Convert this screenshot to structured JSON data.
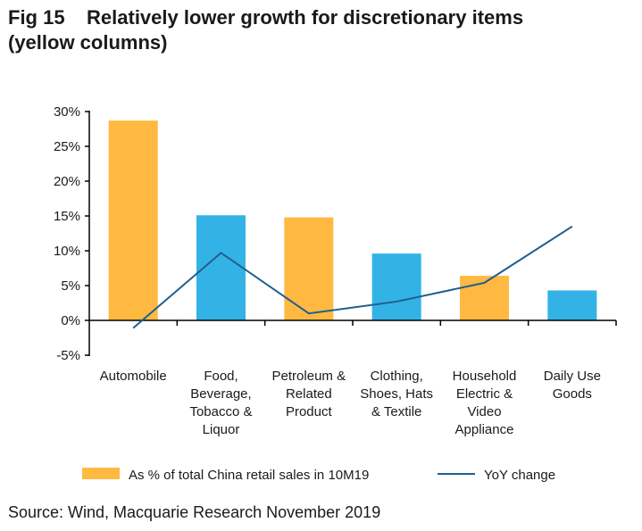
{
  "title_line1": "Fig 15    Relatively lower growth for discretionary items",
  "title_line2": "(yellow columns)",
  "source": "Source: Wind, Macquarie Research November 2019",
  "colors": {
    "yellow": "#FFB941",
    "blue": "#33B2E6",
    "line": "#1F5F8F",
    "axis": "#000000"
  },
  "chart_data": {
    "type": "bar",
    "title": "Relatively lower growth for discretionary items (yellow columns)",
    "categories": [
      [
        "Automobile"
      ],
      [
        "Food,",
        "Beverage,",
        "Tobacco &",
        "Liquor"
      ],
      [
        "Petroleum &",
        "Related",
        "Product"
      ],
      [
        "Clothing,",
        "Shoes, Hats",
        "& Textile"
      ],
      [
        "Household",
        "Electric &",
        "Video",
        "Appliance"
      ],
      [
        "Daily Use",
        "Goods"
      ]
    ],
    "bar_colors": [
      "yellow",
      "blue",
      "yellow",
      "blue",
      "yellow",
      "blue"
    ],
    "series": [
      {
        "name": "As % of total China retail sales in 10M19",
        "type": "bar",
        "values": [
          28.7,
          15.1,
          14.8,
          9.6,
          6.4,
          4.3
        ]
      },
      {
        "name": "YoY change",
        "type": "line",
        "values": [
          -1.1,
          9.7,
          1.0,
          2.7,
          5.4,
          13.5
        ]
      }
    ],
    "yticks": [
      "-5%",
      "0%",
      "5%",
      "10%",
      "15%",
      "20%",
      "25%",
      "30%"
    ],
    "ylim": [
      -5,
      30
    ],
    "grid": false,
    "legend": "bottom"
  }
}
